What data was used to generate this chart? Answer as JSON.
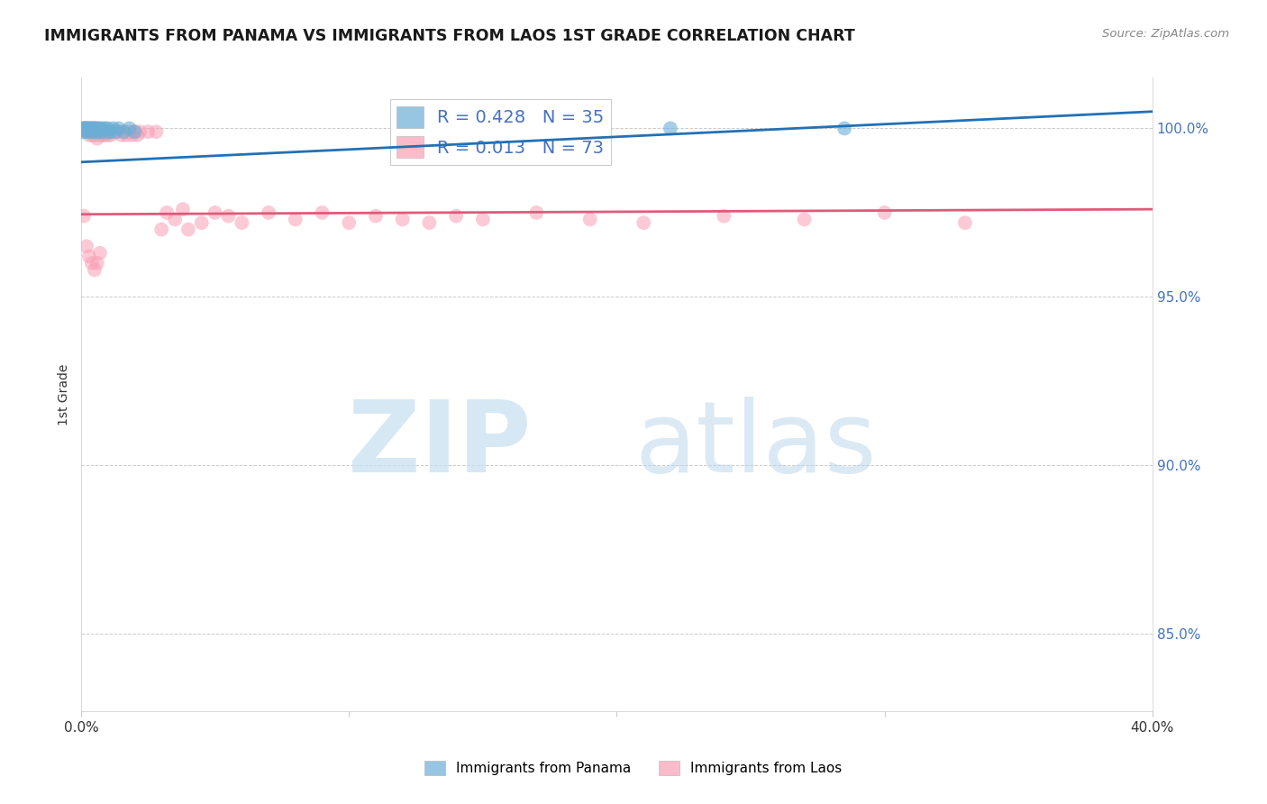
{
  "title": "IMMIGRANTS FROM PANAMA VS IMMIGRANTS FROM LAOS 1ST GRADE CORRELATION CHART",
  "source": "Source: ZipAtlas.com",
  "ylabel": "1st Grade",
  "legend_blue_r": "R = 0.428",
  "legend_blue_n": "N = 35",
  "legend_pink_r": "R = 0.013",
  "legend_pink_n": "N = 73",
  "blue_color": "#6baed6",
  "pink_color": "#fa9fb5",
  "trend_blue_color": "#2171b5",
  "trend_pink_color": "#e05a7a",
  "xlim": [
    0.0,
    0.4
  ],
  "ylim": [
    0.827,
    1.015
  ],
  "yticks": [
    0.85,
    0.9,
    0.95,
    1.0
  ],
  "ytick_labels": [
    "85.0%",
    "90.0%",
    "95.0%",
    "100.0%"
  ],
  "xtick_left_label": "0.0%",
  "xtick_right_label": "40.0%",
  "panama_x": [
    0.001,
    0.001,
    0.001,
    0.002,
    0.002,
    0.002,
    0.002,
    0.003,
    0.003,
    0.003,
    0.004,
    0.004,
    0.004,
    0.005,
    0.005,
    0.005,
    0.006,
    0.006,
    0.007,
    0.007,
    0.008,
    0.008,
    0.009,
    0.01,
    0.01,
    0.011,
    0.012,
    0.013,
    0.014,
    0.016,
    0.018,
    0.02,
    0.16,
    0.22,
    0.285
  ],
  "panama_y": [
    1.0,
    1.0,
    0.999,
    1.0,
    1.0,
    0.999,
    1.0,
    1.0,
    0.999,
    1.0,
    1.0,
    0.999,
    1.0,
    0.999,
    1.0,
    1.0,
    0.999,
    1.0,
    0.999,
    1.0,
    0.999,
    1.0,
    1.0,
    0.999,
    1.0,
    0.999,
    1.0,
    0.999,
    1.0,
    0.999,
    1.0,
    0.999,
    1.0,
    1.0,
    1.0
  ],
  "laos_x": [
    0.001,
    0.001,
    0.001,
    0.002,
    0.002,
    0.003,
    0.003,
    0.003,
    0.004,
    0.004,
    0.004,
    0.005,
    0.005,
    0.005,
    0.006,
    0.006,
    0.006,
    0.007,
    0.007,
    0.007,
    0.008,
    0.008,
    0.009,
    0.009,
    0.01,
    0.01,
    0.011,
    0.011,
    0.012,
    0.013,
    0.014,
    0.015,
    0.016,
    0.017,
    0.018,
    0.019,
    0.02,
    0.021,
    0.022,
    0.025,
    0.028,
    0.03,
    0.032,
    0.035,
    0.038,
    0.04,
    0.045,
    0.05,
    0.055,
    0.06,
    0.07,
    0.08,
    0.09,
    0.1,
    0.11,
    0.12,
    0.13,
    0.14,
    0.15,
    0.17,
    0.19,
    0.21,
    0.24,
    0.27,
    0.3,
    0.33,
    0.001,
    0.002,
    0.003,
    0.004,
    0.005,
    0.006,
    0.007
  ],
  "laos_y": [
    1.0,
    0.999,
    1.0,
    1.0,
    0.999,
    0.999,
    1.0,
    0.998,
    0.999,
    1.0,
    0.998,
    0.999,
    1.0,
    0.998,
    0.999,
    1.0,
    0.997,
    0.999,
    0.998,
    1.0,
    0.998,
    0.999,
    0.998,
    0.999,
    0.998,
    0.999,
    0.998,
    0.999,
    0.999,
    0.999,
    0.999,
    0.998,
    0.999,
    0.998,
    0.999,
    0.998,
    0.999,
    0.998,
    0.999,
    0.999,
    0.999,
    0.97,
    0.975,
    0.973,
    0.976,
    0.97,
    0.972,
    0.975,
    0.974,
    0.972,
    0.975,
    0.973,
    0.975,
    0.972,
    0.974,
    0.973,
    0.972,
    0.974,
    0.973,
    0.975,
    0.973,
    0.972,
    0.974,
    0.973,
    0.975,
    0.972,
    0.974,
    0.965,
    0.962,
    0.96,
    0.958,
    0.96,
    0.963
  ],
  "trend_blue_x0": 0.0,
  "trend_blue_y0": 0.99,
  "trend_blue_x1": 0.4,
  "trend_blue_y1": 1.005,
  "trend_pink_x0": 0.0,
  "trend_pink_y0": 0.9745,
  "trend_pink_x1": 0.4,
  "trend_pink_y1": 0.976
}
